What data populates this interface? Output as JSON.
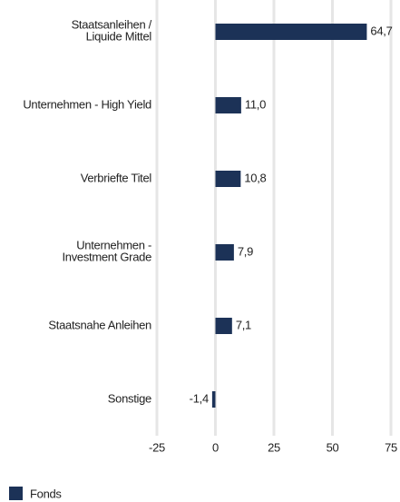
{
  "chart_data": {
    "type": "barh",
    "categories": [
      "Staatsanleihen /\nLiquide Mittel",
      "Unternehmen - High Yield",
      "Verbriefte Titel",
      "Unternehmen -\nInvestment Grade",
      "Staatsnahe Anleihen",
      "Sonstige"
    ],
    "series": [
      {
        "name": "Fonds",
        "color": "#1c3257",
        "values": [
          64.7,
          11.0,
          10.8,
          7.9,
          7.1,
          -1.4
        ],
        "value_labels": [
          "64,7",
          "11,0",
          "10,8",
          "7,9",
          "7,1",
          "-1,4"
        ]
      }
    ],
    "xlim": [
      -25,
      75
    ],
    "xticks": [
      -25,
      0,
      25,
      50,
      75
    ],
    "grid": true
  }
}
